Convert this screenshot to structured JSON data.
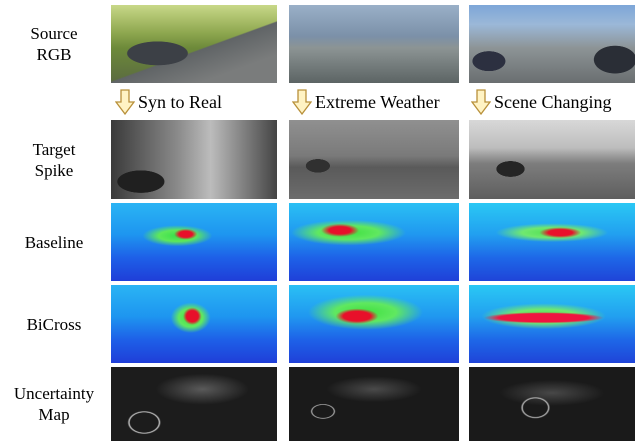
{
  "rows": [
    {
      "label": "Source RGB"
    },
    {
      "label": "Target Spike"
    },
    {
      "label": "Baseline"
    },
    {
      "label": "BiCross"
    },
    {
      "label": "Uncertainty Map"
    }
  ],
  "transitions": [
    "Syn to Real",
    "Extreme Weather",
    "Scene Changing"
  ]
}
